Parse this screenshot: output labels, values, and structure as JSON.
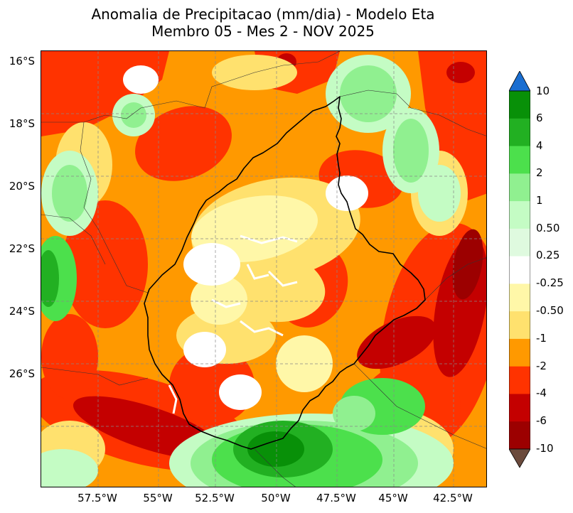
{
  "title": {
    "line1": "Anomalia de Precipitacao (mm/dia) - Modelo Eta",
    "line2": "Membro 05 - Mes 2 - NOV 2025"
  },
  "latitude_labels": [
    "16°S",
    "18°S",
    "20°S",
    "22°S",
    "24°S",
    "26°S"
  ],
  "longitude_labels": [
    "57.5°W",
    "55°W",
    "52.5°W",
    "50°W",
    "47.5°W",
    "45°W",
    "42.5°W"
  ],
  "colorbar": {
    "labels": [
      "10",
      "6",
      "4",
      "2",
      "1",
      "0.50",
      "0.25",
      "-0.25",
      "-0.50",
      "-1",
      "-2",
      "-4",
      "-6",
      "-10"
    ],
    "colors": [
      "#0a3f0a",
      "#089008",
      "#22b022",
      "#4ce04c",
      "#90f090",
      "#c4fcc4",
      "#dffadf",
      "#ffffff",
      "#fff7a8",
      "#ffe16e",
      "#ff9900",
      "#ff3300",
      "#c40000",
      "#9c0000"
    ],
    "over_color": "#1a6ed1",
    "under_color": "#6b4a3c"
  },
  "map_colors": {
    "base": "#ff9900",
    "red": "#ff3300",
    "darkred": "#c40000",
    "darkest": "#9c0000",
    "yellow": "#ffe16e",
    "paleyellow": "#fff7a8",
    "white": "#ffffff",
    "palegreen": "#c4fcc4",
    "lightgreen": "#90f090",
    "green": "#4ce04c",
    "midgreen": "#22b022",
    "darkgreen": "#089008"
  }
}
